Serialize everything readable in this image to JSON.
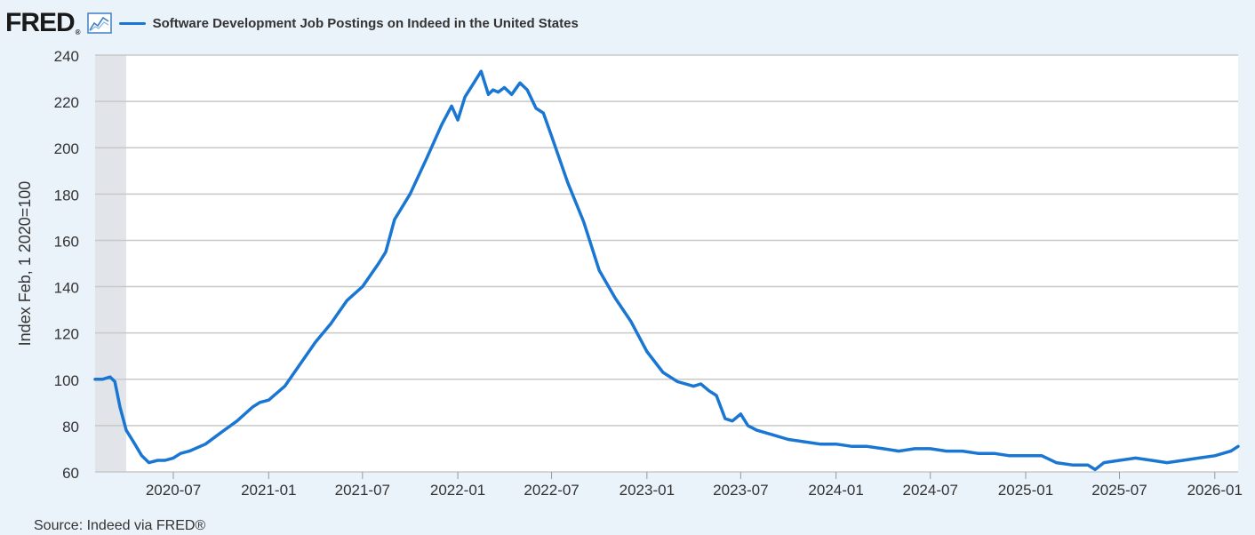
{
  "header": {
    "logo_text": "FRED",
    "logo_reg": "®",
    "logo_icon": "line-chart-icon"
  },
  "footer": {
    "source": "Source: Indeed via FRED®"
  },
  "colors": {
    "series": "#1976d2",
    "grid": "#c8c8c8",
    "recession": "#e1e5ea",
    "background": "#eaf2fa",
    "plot": "#ffffff"
  },
  "chart_data": {
    "type": "line",
    "title": "",
    "xlabel": "",
    "ylabel": "Index Feb, 1 2020=100",
    "ylim": [
      60,
      240
    ],
    "yticks": [
      60,
      80,
      100,
      120,
      140,
      160,
      180,
      200,
      220,
      240
    ],
    "xlim": [
      "2020-02-01",
      "2026-02-15"
    ],
    "xticks": [
      "2020-07",
      "2021-01",
      "2021-07",
      "2022-01",
      "2022-07",
      "2023-01",
      "2023-07",
      "2024-01",
      "2024-07",
      "2025-01",
      "2025-07",
      "2026-01"
    ],
    "grid": true,
    "legend": "top-left",
    "recession": {
      "start": "2020-02-01",
      "end": "2020-04-01"
    },
    "series": [
      {
        "name": "Software Development Job Postings on Indeed in the United States",
        "color": "#1976d2",
        "x": [
          "2020-02-01",
          "2020-02-15",
          "2020-03-01",
          "2020-03-10",
          "2020-03-20",
          "2020-04-01",
          "2020-04-15",
          "2020-05-01",
          "2020-05-15",
          "2020-06-01",
          "2020-06-15",
          "2020-07-01",
          "2020-07-15",
          "2020-08-01",
          "2020-09-01",
          "2020-10-01",
          "2020-11-01",
          "2020-12-01",
          "2020-12-15",
          "2021-01-01",
          "2021-02-01",
          "2021-03-01",
          "2021-04-01",
          "2021-05-01",
          "2021-06-01",
          "2021-07-01",
          "2021-08-01",
          "2021-08-15",
          "2021-09-01",
          "2021-10-01",
          "2021-11-01",
          "2021-12-01",
          "2021-12-20",
          "2022-01-01",
          "2022-01-15",
          "2022-02-01",
          "2022-02-15",
          "2022-03-01",
          "2022-03-10",
          "2022-03-20",
          "2022-04-01",
          "2022-04-15",
          "2022-05-01",
          "2022-05-15",
          "2022-06-01",
          "2022-06-15",
          "2022-07-01",
          "2022-08-01",
          "2022-09-01",
          "2022-10-01",
          "2022-11-01",
          "2022-12-01",
          "2023-01-01",
          "2023-02-01",
          "2023-03-01",
          "2023-04-01",
          "2023-04-15",
          "2023-05-01",
          "2023-05-15",
          "2023-06-01",
          "2023-06-15",
          "2023-07-01",
          "2023-07-15",
          "2023-08-01",
          "2023-09-01",
          "2023-10-01",
          "2023-11-01",
          "2023-12-01",
          "2024-01-01",
          "2024-02-01",
          "2024-03-01",
          "2024-04-01",
          "2024-05-01",
          "2024-06-01",
          "2024-07-01",
          "2024-08-01",
          "2024-09-01",
          "2024-10-01",
          "2024-11-01",
          "2024-12-01",
          "2025-01-01",
          "2025-02-01",
          "2025-03-01",
          "2025-04-01",
          "2025-05-01",
          "2025-05-15",
          "2025-06-01",
          "2025-07-01",
          "2025-08-01",
          "2025-09-01",
          "2025-10-01",
          "2025-11-01",
          "2025-12-01",
          "2026-01-01",
          "2026-02-01",
          "2026-02-15"
        ],
        "values": [
          100,
          100,
          101,
          99,
          88,
          78,
          73,
          67,
          64,
          65,
          65,
          66,
          68,
          69,
          72,
          77,
          82,
          88,
          90,
          91,
          97,
          106,
          116,
          124,
          134,
          140,
          150,
          155,
          169,
          180,
          195,
          210,
          218,
          212,
          222,
          228,
          233,
          223,
          225,
          224,
          226,
          223,
          228,
          225,
          217,
          215,
          205,
          185,
          168,
          147,
          135,
          125,
          112,
          103,
          99,
          97,
          98,
          95,
          93,
          83,
          82,
          85,
          80,
          78,
          76,
          74,
          73,
          72,
          72,
          71,
          71,
          70,
          69,
          70,
          70,
          69,
          69,
          68,
          68,
          67,
          67,
          67,
          64,
          63,
          63,
          61,
          64,
          65,
          66,
          65,
          64,
          65,
          66,
          67,
          69,
          71
        ]
      }
    ]
  }
}
